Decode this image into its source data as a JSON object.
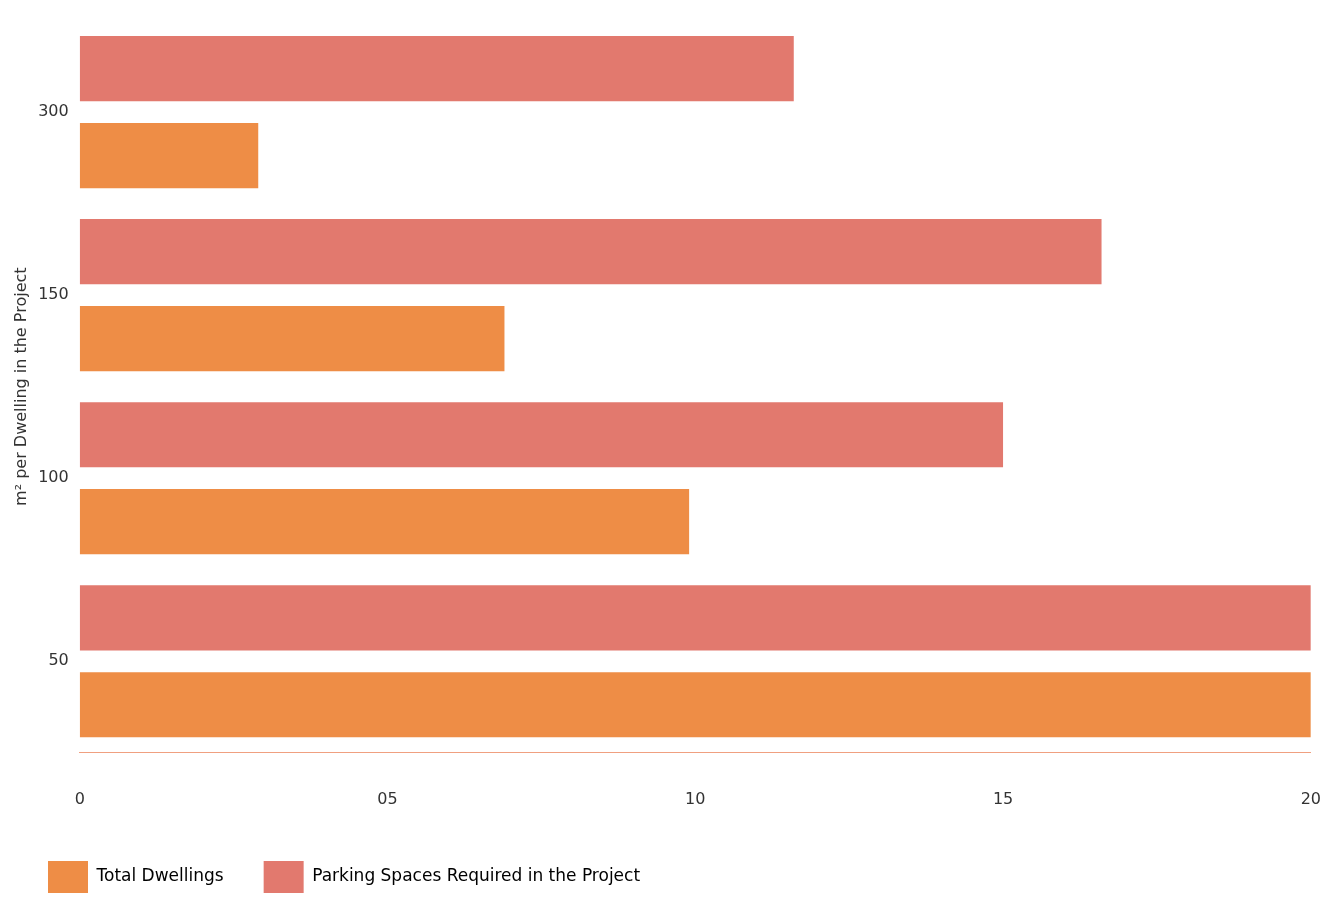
{
  "chart_data": {
    "type": "bar",
    "orientation": "horizontal",
    "ylabel": "m² per Dwelling in the Project",
    "categories": [
      "300",
      "150",
      "100",
      "50"
    ],
    "series": [
      {
        "name": "Parking Spaces Required in the Project",
        "color": "#e2796e",
        "values": [
          11.6,
          16.6,
          15.0,
          20
        ]
      },
      {
        "name": "Total Dwellings",
        "color": "#ee8d46",
        "values": [
          2.9,
          6.9,
          9.9,
          20
        ]
      }
    ],
    "xlim": [
      0,
      20
    ],
    "xticks": [
      0,
      {
        "value": 5,
        "label": "05"
      },
      10,
      15,
      20
    ],
    "grid": false,
    "legend": "bottom left"
  }
}
